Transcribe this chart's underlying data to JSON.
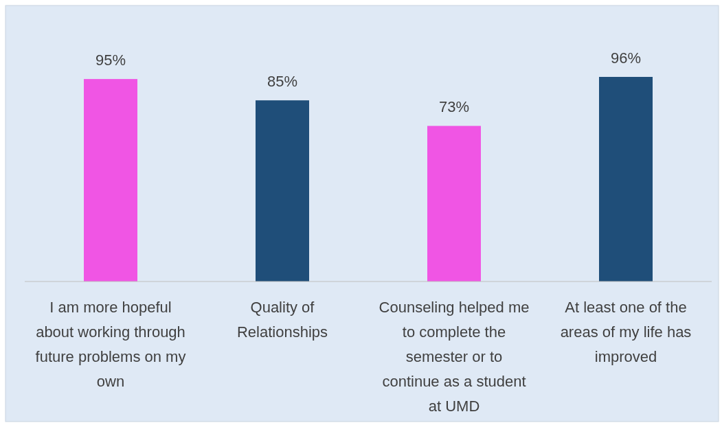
{
  "chart_data": {
    "type": "bar",
    "categories": [
      "I am more hopeful about working through future problems on my own",
      "Quality of Relationships",
      "Counseling helped me to complete the semester or to continue as a student at UMD",
      "At least one of the areas of my life has improved"
    ],
    "values": [
      95,
      85,
      73,
      96
    ],
    "colors": [
      "#f055e4",
      "#1f4e79",
      "#f055e4",
      "#1f4e79"
    ],
    "value_labels": [
      "95%",
      "85%",
      "73%",
      "96%"
    ],
    "tick_labels": "x"
  }
}
